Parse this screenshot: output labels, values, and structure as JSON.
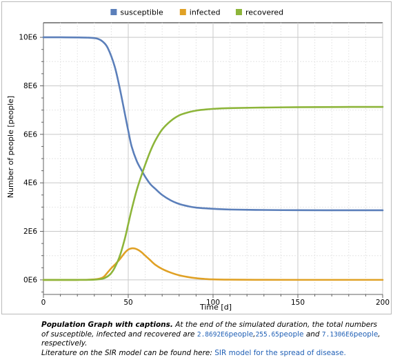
{
  "chart_data": {
    "type": "line",
    "xlabel": "Time [d]",
    "ylabel": "Number of people [people]",
    "xlim": [
      0,
      200
    ],
    "ylim": [
      -600000,
      10600000
    ],
    "x_ticks": [
      0,
      50,
      100,
      150,
      200
    ],
    "y_ticks": [
      0,
      2000000,
      4000000,
      6000000,
      8000000,
      10000000
    ],
    "y_tick_labels": [
      "0E6",
      "2E6",
      "4E6",
      "6E6",
      "8E6",
      "10E6"
    ],
    "grid": true,
    "legend_position": "top-center",
    "series": [
      {
        "name": "susceptible",
        "color": "#5b7fba",
        "x": [
          0,
          10,
          20,
          28,
          32,
          35,
          38,
          42,
          45,
          48,
          50,
          52,
          55,
          58,
          60,
          63,
          66,
          70,
          75,
          80,
          85,
          90,
          100,
          110,
          125,
          150,
          175,
          200
        ],
        "y": [
          10000000,
          10000000,
          9995000,
          9980000,
          9940000,
          9820000,
          9550000,
          8800000,
          7900000,
          6850000,
          6150000,
          5500000,
          4900000,
          4500000,
          4250000,
          3950000,
          3750000,
          3500000,
          3280000,
          3130000,
          3040000,
          2980000,
          2930000,
          2900000,
          2885000,
          2872000,
          2870000,
          2869200
        ]
      },
      {
        "name": "infected",
        "color": "#e0a125",
        "x": [
          0,
          20,
          30,
          35,
          38,
          40,
          42,
          45,
          48,
          50,
          52,
          54,
          56,
          58,
          60,
          63,
          66,
          70,
          75,
          80,
          85,
          90,
          95,
          100,
          110,
          125,
          150,
          200
        ],
        "y": [
          0,
          0,
          20000,
          100000,
          320000,
          480000,
          620000,
          850000,
          1120000,
          1250000,
          1300000,
          1290000,
          1230000,
          1130000,
          1000000,
          810000,
          620000,
          450000,
          300000,
          190000,
          120000,
          70000,
          40000,
          20000,
          8000,
          2000,
          500,
          256
        ]
      },
      {
        "name": "recovered",
        "color": "#8db53a",
        "x": [
          0,
          20,
          30,
          35,
          38,
          40,
          42,
          45,
          48,
          50,
          52,
          55,
          58,
          60,
          63,
          66,
          70,
          75,
          80,
          85,
          90,
          95,
          100,
          110,
          125,
          150,
          175,
          200
        ],
        "y": [
          0,
          0,
          10000,
          50000,
          150000,
          280000,
          500000,
          980000,
          1700000,
          2300000,
          2900000,
          3700000,
          4350000,
          4750000,
          5300000,
          5750000,
          6200000,
          6550000,
          6780000,
          6900000,
          6980000,
          7020000,
          7050000,
          7080000,
          7100000,
          7120000,
          7128000,
          7130600
        ]
      }
    ]
  },
  "caption": {
    "lead": "Population Graph with captions.",
    "text1": " At the end of the simulated duration, the total numbers of susceptible, infected and recovered are ",
    "val_s": "2.8692E6",
    "unit_s": "people",
    "sep1": ",",
    "val_i": "255.65",
    "unit_i": "people",
    "and": " and ",
    "val_r": "7.1306E6",
    "unit_r": "people",
    "end": ", respectively.",
    "lit": "Literature on the SIR model can be found here: ",
    "link": "SIR model for the spread of disease."
  }
}
